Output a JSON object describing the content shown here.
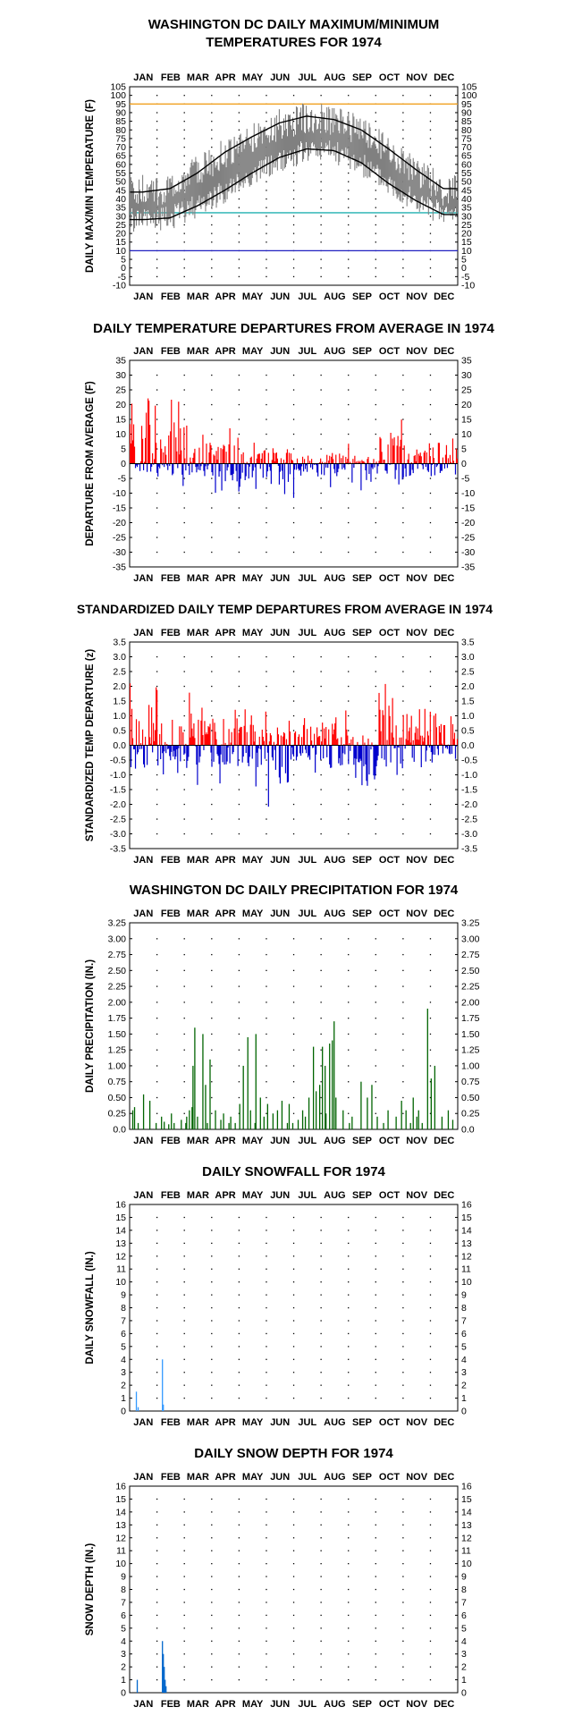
{
  "chart_data": [
    {
      "type": "line",
      "title": "WASHINGTON DC DAILY MAXIMUM/MINIMUM\nTEMPERATURES FOR 1974",
      "ylabel": "DAILY MAX/MIN TEMPERATURE (F)",
      "months": [
        "JAN",
        "FEB",
        "MAR",
        "APR",
        "MAY",
        "JUN",
        "JUL",
        "AUG",
        "SEP",
        "OCT",
        "NOV",
        "DEC"
      ],
      "yticks": [
        "105",
        "100",
        "95",
        "90",
        "85",
        "80",
        "75",
        "70",
        "65",
        "60",
        "55",
        "50",
        "45",
        "40",
        "35",
        "30",
        "25",
        "20",
        "15",
        "10",
        "5",
        "0",
        "-5",
        "-10"
      ],
      "ylim": [
        -10,
        105
      ],
      "reference_lines": [
        {
          "value": 95,
          "color": "#f0a020"
        },
        {
          "value": 32,
          "color": "#20b0b0"
        },
        {
          "value": 10,
          "color": "#2020c0"
        }
      ],
      "series": [
        {
          "color": "#808080",
          "monthly_max": [
            45,
            45,
            56,
            66,
            75,
            83,
            87,
            86,
            79,
            68,
            56,
            45
          ],
          "monthly_min": [
            28,
            29,
            36,
            44,
            54,
            62,
            68,
            67,
            60,
            49,
            38,
            31
          ]
        },
        {
          "color": "#000000",
          "normal_max": [
            44,
            46,
            55,
            67,
            76,
            84,
            88,
            86,
            80,
            69,
            57,
            46
          ]
        },
        {
          "color": "#000000",
          "normal_min": [
            28,
            29,
            36,
            45,
            55,
            64,
            69,
            68,
            61,
            49,
            39,
            31
          ]
        }
      ]
    },
    {
      "type": "bar",
      "title": "DAILY TEMPERATURE DEPARTURES FROM AVERAGE IN 1974",
      "ylabel": "DEPARTURE FROM AVERAGE (F)",
      "months": [
        "JAN",
        "FEB",
        "MAR",
        "APR",
        "MAY",
        "JUN",
        "JUL",
        "AUG",
        "SEP",
        "OCT",
        "NOV",
        "DEC"
      ],
      "yticks": [
        "35",
        "30",
        "25",
        "20",
        "15",
        "10",
        "5",
        "0",
        "-5",
        "-10",
        "-15",
        "-20",
        "-25",
        "-30",
        "-35"
      ],
      "ylim": [
        -35,
        35
      ],
      "positive_color": "#ff0000",
      "negative_color": "#0000cc",
      "monthly_extremes": [
        [
          25,
          -8
        ],
        [
          28,
          -10
        ],
        [
          14,
          -9
        ],
        [
          12,
          -11
        ],
        [
          8,
          -10
        ],
        [
          7,
          -15
        ],
        [
          5,
          -6
        ],
        [
          7,
          -8
        ],
        [
          3,
          -18
        ],
        [
          20,
          -10
        ],
        [
          8,
          -10
        ],
        [
          14,
          -5
        ]
      ]
    },
    {
      "type": "bar",
      "title": "STANDARDIZED DAILY TEMP DEPARTURES FROM AVERAGE IN 1974",
      "ylabel": "STANDARDIZED TEMP DEPARTURE (z)",
      "months": [
        "JAN",
        "FEB",
        "MAR",
        "APR",
        "MAY",
        "JUN",
        "JUL",
        "AUG",
        "SEP",
        "OCT",
        "NOV",
        "DEC"
      ],
      "yticks": [
        "3.5",
        "3.0",
        "2.5",
        "2.0",
        "1.5",
        "1.0",
        "0.5",
        "0.0",
        "-0.5",
        "-1.0",
        "-1.5",
        "-2.0",
        "-2.5",
        "-3.0",
        "-3.5"
      ],
      "ylim": [
        -3.5,
        3.5
      ],
      "positive_color": "#ff0000",
      "negative_color": "#0000cc",
      "monthly_extremes": [
        [
          2.5,
          -0.8
        ],
        [
          3.0,
          -1.0
        ],
        [
          2.0,
          -1.4
        ],
        [
          1.7,
          -1.3
        ],
        [
          1.3,
          -1.5
        ],
        [
          1.2,
          -2.5
        ],
        [
          1.2,
          -1.0
        ],
        [
          1.5,
          -1.4
        ],
        [
          0.6,
          -2.5
        ],
        [
          2.5,
          -1.5
        ],
        [
          1.3,
          -1.2
        ],
        [
          1.5,
          -0.7
        ]
      ]
    },
    {
      "type": "bar",
      "title": "WASHINGTON DC DAILY PRECIPITATION FOR 1974",
      "ylabel": "DAILY PRECIPITATION (IN.)",
      "months": [
        "JAN",
        "FEB",
        "MAR",
        "APR",
        "MAY",
        "JUN",
        "JUL",
        "AUG",
        "SEP",
        "OCT",
        "NOV",
        "DEC"
      ],
      "yticks": [
        "3.25",
        "3.00",
        "2.75",
        "2.50",
        "2.25",
        "2.00",
        "1.75",
        "1.50",
        "1.25",
        "1.00",
        "0.75",
        "0.50",
        "0.25",
        "0.0"
      ],
      "ylim": [
        0,
        3.25
      ],
      "color": "#006400",
      "days": [
        4,
        6,
        10,
        16,
        23,
        30,
        36,
        39,
        44,
        47,
        50,
        58,
        63,
        64,
        67,
        70,
        71,
        73,
        76,
        82,
        85,
        87,
        90,
        96,
        102,
        105,
        111,
        113,
        118,
        123,
        127,
        132,
        135,
        140,
        141,
        146,
        150,
        154,
        160,
        165,
        170,
        176,
        178,
        182,
        188,
        193,
        196,
        200,
        205,
        208,
        212,
        215,
        218,
        219,
        223,
        226,
        228,
        230,
        238,
        245,
        248,
        258,
        265,
        270,
        276,
        283,
        288,
        297,
        303,
        308,
        313,
        316,
        320,
        322,
        326,
        332,
        336,
        340,
        348,
        355,
        360
      ],
      "values": [
        0.3,
        0.35,
        0.1,
        0.55,
        0.45,
        0.1,
        0.2,
        0.12,
        0.08,
        0.25,
        0.1,
        0.15,
        0.1,
        0.2,
        0.3,
        0.35,
        1.0,
        1.6,
        0.2,
        1.5,
        0.7,
        0.1,
        1.1,
        0.3,
        0.15,
        0.25,
        0.1,
        0.2,
        0.1,
        0.4,
        1.0,
        1.45,
        0.3,
        0.1,
        1.5,
        0.5,
        0.2,
        0.4,
        0.25,
        0.3,
        0.45,
        0.1,
        0.4,
        0.1,
        0.15,
        0.3,
        0.2,
        0.5,
        1.3,
        0.6,
        0.7,
        1.3,
        1.0,
        0.25,
        1.35,
        1.4,
        1.7,
        0.5,
        0.3,
        0.1,
        0.2,
        0.75,
        0.5,
        0.7,
        0.2,
        0.1,
        0.3,
        0.2,
        0.45,
        0.3,
        0.1,
        0.5,
        0.2,
        0.3,
        0.1,
        1.9,
        0.8,
        1.0,
        0.2,
        0.3,
        0.15
      ]
    },
    {
      "type": "bar",
      "title": "DAILY SNOWFALL FOR 1974",
      "ylabel": "DAILY SNOWFALL (IN.)",
      "months": [
        "JAN",
        "FEB",
        "MAR",
        "APR",
        "MAY",
        "JUN",
        "JUL",
        "AUG",
        "SEP",
        "OCT",
        "NOV",
        "DEC"
      ],
      "yticks": [
        "16",
        "15",
        "14",
        "13",
        "12",
        "11",
        "10",
        "9",
        "8",
        "7",
        "6",
        "5",
        "4",
        "3",
        "2",
        "1",
        "0"
      ],
      "ylim": [
        0,
        16
      ],
      "color": "#3399ff",
      "days": [
        8,
        10,
        37,
        38
      ],
      "values": [
        1.5,
        0.3,
        4.0,
        0.5
      ]
    },
    {
      "type": "bar",
      "title": "DAILY SNOW DEPTH FOR 1974",
      "ylabel": "SNOW DEPTH (IN.)",
      "months": [
        "JAN",
        "FEB",
        "MAR",
        "APR",
        "MAY",
        "JUN",
        "JUL",
        "AUG",
        "SEP",
        "OCT",
        "NOV",
        "DEC"
      ],
      "yticks": [
        "16",
        "15",
        "14",
        "13",
        "12",
        "11",
        "10",
        "9",
        "8",
        "7",
        "6",
        "5",
        "4",
        "3",
        "2",
        "1",
        "0"
      ],
      "ylim": [
        0,
        16
      ],
      "color": "#0066cc",
      "days": [
        9,
        37,
        38,
        39,
        40,
        41
      ],
      "values": [
        1.0,
        4.0,
        3.0,
        2.0,
        1.0,
        0.5
      ]
    }
  ]
}
